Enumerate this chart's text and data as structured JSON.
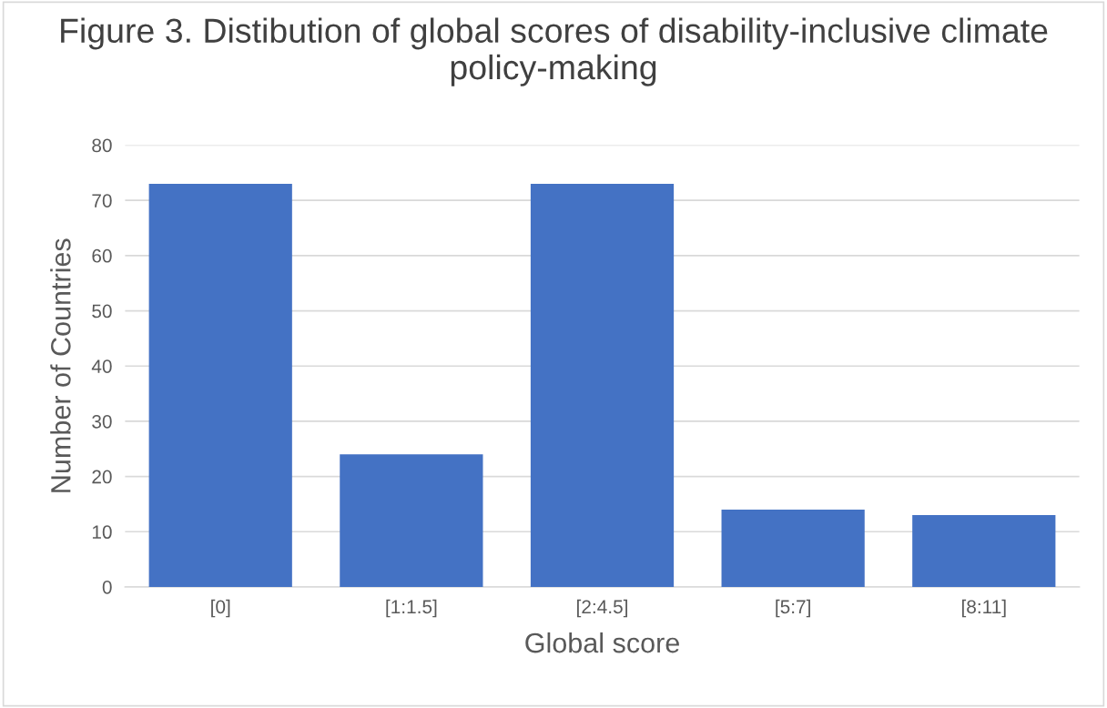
{
  "chart_data": {
    "type": "bar",
    "title": "Figure 3. Distibution of global scores of disability-inclusive climate policy-making",
    "xlabel": "Global score",
    "ylabel": "Number of Countries",
    "categories": [
      "[0]",
      "[1:1.5]",
      "[2:4.5]",
      "[5:7]",
      "[8:11]"
    ],
    "values": [
      73,
      24,
      73,
      14,
      13
    ],
    "color": "#4472c4",
    "ylim": [
      0,
      80
    ],
    "yticks": [
      0,
      10,
      20,
      30,
      40,
      50,
      60,
      70,
      80
    ],
    "grid": "y"
  }
}
